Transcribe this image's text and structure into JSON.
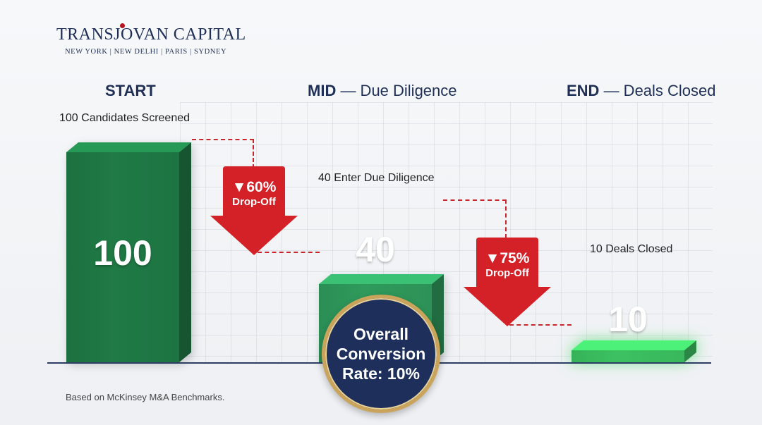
{
  "brand": {
    "name": "TRANSJOVAN CAPITAL",
    "cities": "NEW YORK  |  NEW DELHI  |  PARIS  |  SYDNEY"
  },
  "stages": [
    {
      "label": "START",
      "sub": ""
    },
    {
      "label": "MID",
      "sub": " — Due Diligence"
    },
    {
      "label": "END",
      "sub": " — Deals Closed"
    }
  ],
  "chart_data": {
    "type": "bar",
    "categories": [
      "START",
      "MID",
      "END"
    ],
    "values": [
      100,
      40,
      10
    ],
    "value_labels": [
      "100",
      "40",
      "10"
    ],
    "bar_captions": [
      "100 Candidates Screened",
      "40 Enter Due Diligence",
      "10 Deals Closed"
    ],
    "drop_offs": [
      {
        "pct": "▼60%",
        "label": "Drop-Off"
      },
      {
        "pct": "▼75%",
        "label": "Drop-Off"
      }
    ],
    "colors": [
      "#1f7a45",
      "#2f9a5c",
      "#3cc161"
    ]
  },
  "summary": {
    "badge": "Overall Conversion Rate: 10%"
  },
  "source": "Based on McKinsey M&A Benchmarks."
}
